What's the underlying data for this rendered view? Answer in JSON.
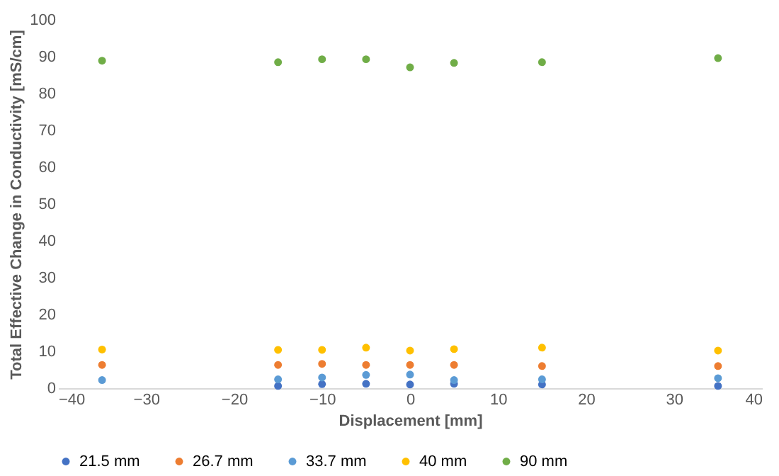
{
  "chart_data": {
    "type": "scatter",
    "xlabel": "Displacement [mm]",
    "ylabel": "Total Effective Change  in Conductivity [mS/cm]",
    "x": [
      -35,
      -15,
      -10,
      -5,
      0,
      5,
      15,
      35
    ],
    "series": [
      {
        "name": "21.5 mm",
        "color": "#4472c4",
        "values": [
          null,
          0.6,
          1.1,
          1.2,
          1.0,
          1.2,
          1.0,
          0.6
        ]
      },
      {
        "name": "26.7 mm",
        "color": "#ed7d31",
        "values": [
          6.3,
          6.3,
          6.6,
          6.3,
          6.3,
          6.3,
          6.0,
          6.0
        ]
      },
      {
        "name": "33.7 mm",
        "color": "#5b9bd5",
        "values": [
          2.2,
          2.4,
          2.9,
          3.6,
          3.7,
          2.2,
          2.4,
          2.7
        ]
      },
      {
        "name": "40 mm",
        "color": "#ffc000",
        "values": [
          10.5,
          10.4,
          10.4,
          11.0,
          10.2,
          10.6,
          11.0,
          10.2
        ]
      },
      {
        "name": "90 mm",
        "color": "#70ad47",
        "values": [
          88.9,
          88.5,
          89.3,
          89.3,
          87.1,
          88.3,
          88.5,
          89.6
        ]
      }
    ],
    "xlim": [
      -40,
      40
    ],
    "xticks": [
      -40,
      -30,
      -20,
      -10,
      0,
      10,
      20,
      30,
      40
    ],
    "ylim": [
      0,
      100
    ],
    "yticks": [
      0,
      10,
      20,
      30,
      40,
      50,
      60,
      70,
      80,
      90,
      100
    ],
    "grid": false,
    "legend": "bottom",
    "marker": "circle"
  }
}
